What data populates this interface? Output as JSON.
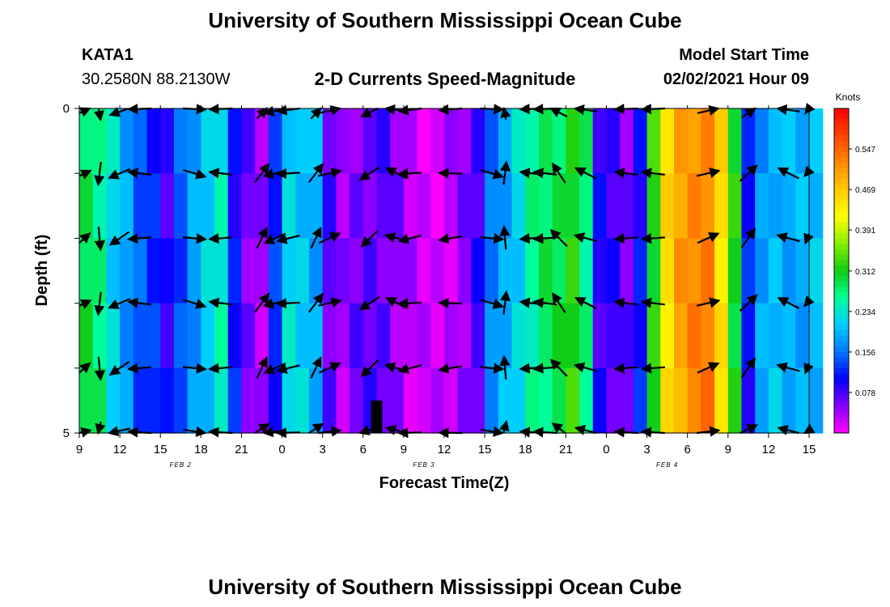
{
  "header": {
    "title": "University of Southern Mississippi Ocean Cube",
    "station_id": "KATA1",
    "location": "30.2580N 88.2130W",
    "subtitle": "2-D Currents Speed-Magnitude",
    "model_label": "Model Start Time",
    "model_time": "02/02/2021 Hour 09"
  },
  "footer": {
    "title": "University of Southern Mississippi Ocean Cube"
  },
  "chart_data": {
    "type": "heatmap",
    "title": "2-D Currents Speed-Magnitude",
    "xlabel": "Forecast Time(Z)",
    "ylabel": "Depth (ft)",
    "x_ticks": [
      "9",
      "12",
      "15",
      "18",
      "21",
      "0",
      "3",
      "6",
      "9",
      "12",
      "15",
      "18",
      "21",
      "0",
      "3",
      "6",
      "9",
      "12",
      "15"
    ],
    "date_labels": [
      {
        "label": "FEB 2",
        "after_tick_index": 2
      },
      {
        "label": "FEB 3",
        "after_tick_index": 8
      },
      {
        "label": "FEB 4",
        "after_tick_index": 14
      }
    ],
    "y_ticks": [
      "0",
      "5"
    ],
    "ylim": [
      0,
      5
    ],
    "hours_start": 9,
    "hours_span": 54,
    "colorbar": {
      "unit": "Knots",
      "ticks": [
        "0.547",
        "0.469",
        "0.391",
        "0.312",
        "0.234",
        "0.156",
        "0.078"
      ],
      "min": 0.0,
      "max": 0.625,
      "colors": [
        "#ff00ff",
        "#8800ff",
        "#0000ff",
        "#0077ff",
        "#00ccff",
        "#00ff99",
        "#11cc11",
        "#88ee00",
        "#ffff00",
        "#ffcc00",
        "#ff8800",
        "#ff4400",
        "#ff0000"
      ]
    },
    "speed_profile": [
      0.29,
      0.27,
      0.22,
      0.18,
      0.14,
      0.12,
      0.09,
      0.14,
      0.18,
      0.21,
      0.24,
      0.11,
      0.06,
      0.04,
      0.12,
      0.22,
      0.21,
      0.19,
      0.07,
      0.04,
      0.06,
      0.07,
      0.07,
      0.05,
      0.03,
      0.02,
      0.02,
      0.03,
      0.05,
      0.08,
      0.16,
      0.19,
      0.22,
      0.26,
      0.28,
      0.29,
      0.32,
      0.27,
      0.09,
      0.08,
      0.06,
      0.11,
      0.32,
      0.45,
      0.5,
      0.52,
      0.53,
      0.45,
      0.31,
      0.11,
      0.18,
      0.2,
      0.19,
      0.19,
      0.2
    ],
    "depth_rows": 5,
    "vector_depths": [
      0,
      1,
      2,
      3,
      4,
      5
    ],
    "vector_hours": [
      9,
      10.5,
      12,
      13.5,
      17.5,
      19.5,
      22.5,
      23.5,
      24.5,
      26.5,
      27.5,
      30.5,
      32.5,
      33.5,
      36.5,
      39.5,
      40.5,
      42.5,
      43.5,
      44.5,
      46.5,
      49.5,
      51.5,
      55.5,
      58.5,
      61.5,
      63.5
    ],
    "vector_angles_deg": [
      -20,
      90,
      150,
      180,
      10,
      180,
      -60,
      160,
      170,
      -60,
      -20,
      140,
      200,
      170,
      175,
      10,
      -90,
      180,
      180,
      -130,
      -160,
      180,
      180,
      -20,
      -50,
      200,
      160
    ],
    "no_data_marker": {
      "hour": 31,
      "depth_from": 4.5,
      "depth_to": 5
    }
  }
}
